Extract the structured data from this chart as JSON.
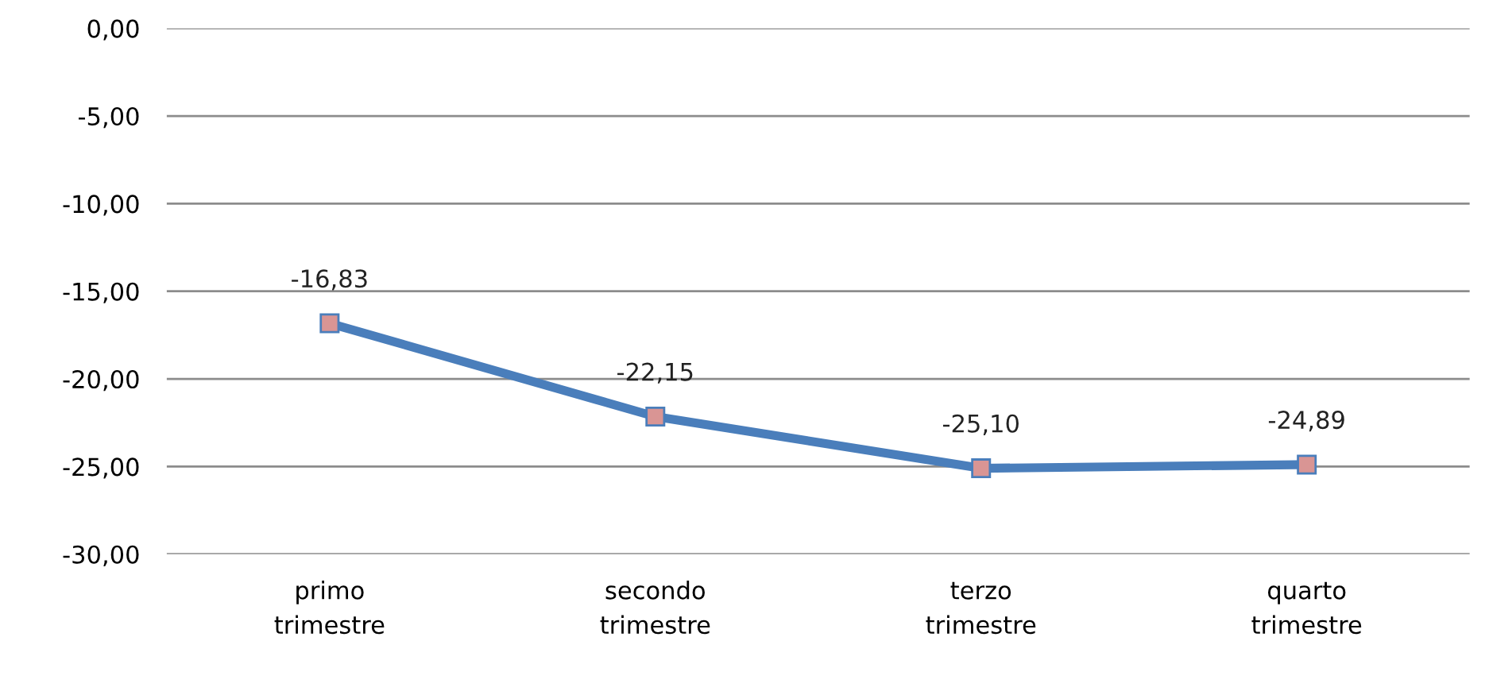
{
  "chart_data": {
    "type": "line",
    "categories": [
      "primo\ntrimestre",
      "secondo\ntrimestre",
      "terzo\ntrimestre",
      "quarto\ntrimestre"
    ],
    "series": [
      {
        "color": "#4a7ebb",
        "colors": [
          "#d99594",
          "#d99594",
          "#d99594",
          "#d99594"
        ],
        "values": [
          -16.83,
          -22.15,
          -25.1,
          -24.89
        ],
        "value_labels": [
          "-16,83",
          "-22,15",
          "-25,10",
          "-24,89"
        ]
      }
    ],
    "ylim": [
      -30,
      0
    ],
    "yticks": [
      {
        "value": 0,
        "label": "0,00"
      },
      {
        "value": -5,
        "label": "-5,00"
      },
      {
        "value": -10,
        "label": "-10,00"
      },
      {
        "value": -15,
        "label": "-15,00"
      },
      {
        "value": -20,
        "label": "-20,00"
      },
      {
        "value": -25,
        "label": "-25,00"
      },
      {
        "value": -30,
        "label": "-30,00"
      }
    ],
    "grid": "y",
    "marker": "square",
    "line_style": "solid",
    "legend": false
  }
}
